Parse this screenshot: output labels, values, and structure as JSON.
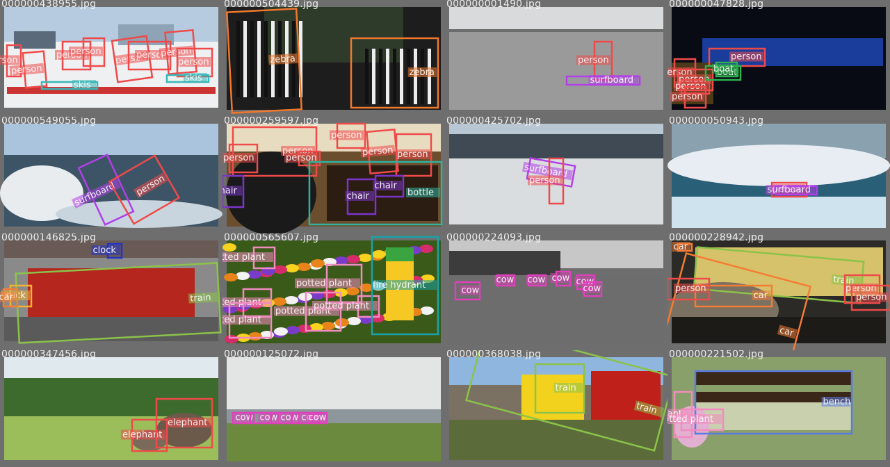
{
  "mosaic": {
    "tiles": [
      {
        "filename": "000000438955.jpg",
        "scene": "ski",
        "objects": [
          {
            "label": "person"
          },
          {
            "label": "person"
          },
          {
            "label": "person"
          },
          {
            "label": "person"
          },
          {
            "label": "person"
          },
          {
            "label": "person"
          },
          {
            "label": "person"
          },
          {
            "label": "person"
          },
          {
            "label": "skis"
          },
          {
            "label": "skis"
          }
        ]
      },
      {
        "filename": "000000504439.jpg",
        "scene": "zebra",
        "objects": [
          {
            "label": "zebra"
          },
          {
            "label": "zebra"
          }
        ]
      },
      {
        "filename": "000000001490.jpg",
        "scene": "sea",
        "objects": [
          {
            "label": "person"
          },
          {
            "label": "surfboard"
          }
        ]
      },
      {
        "filename": "000000047828.jpg",
        "scene": "night",
        "objects": [
          {
            "label": "person"
          },
          {
            "label": "person"
          },
          {
            "label": "person"
          },
          {
            "label": "person"
          },
          {
            "label": "person"
          },
          {
            "label": "boat"
          },
          {
            "label": "boat"
          }
        ]
      },
      {
        "filename": "000000549055.jpg",
        "scene": "wave",
        "objects": [
          {
            "label": "surfboard"
          },
          {
            "label": "person"
          }
        ]
      },
      {
        "filename": "000000259597.jpg",
        "scene": "room",
        "objects": [
          {
            "label": "person"
          },
          {
            "label": "person"
          },
          {
            "label": "person"
          },
          {
            "label": "person"
          },
          {
            "label": "person"
          },
          {
            "label": "person"
          },
          {
            "label": "chair"
          },
          {
            "label": "chair"
          },
          {
            "label": "chair"
          },
          {
            "label": "bottle"
          }
        ]
      },
      {
        "filename": "000000425702.jpg",
        "scene": "beach",
        "objects": [
          {
            "label": "surfboard"
          },
          {
            "label": "person"
          }
        ]
      },
      {
        "filename": "000000050943.jpg",
        "scene": "bigwave",
        "objects": [
          {
            "label": "person"
          },
          {
            "label": "surfboard"
          }
        ]
      },
      {
        "filename": "000000146825.jpg",
        "scene": "train",
        "objects": [
          {
            "label": "clock"
          },
          {
            "label": "train"
          },
          {
            "label": "truck"
          },
          {
            "label": "car"
          }
        ]
      },
      {
        "filename": "000000565607.jpg",
        "scene": "flowers",
        "objects": [
          {
            "label": "potted plant"
          },
          {
            "label": "potted plant"
          },
          {
            "label": "potted plant"
          },
          {
            "label": "potted plant"
          },
          {
            "label": "potted plant"
          },
          {
            "label": "potted plant"
          },
          {
            "label": "fire hydrant"
          }
        ]
      },
      {
        "filename": "000000224093.jpg",
        "scene": "field",
        "objects": [
          {
            "label": "cow"
          },
          {
            "label": "cow"
          },
          {
            "label": "cow"
          },
          {
            "label": "cow"
          },
          {
            "label": "cow"
          },
          {
            "label": "cow"
          }
        ]
      },
      {
        "filename": "000000228942.jpg",
        "scene": "street",
        "objects": [
          {
            "label": "train"
          },
          {
            "label": "car"
          },
          {
            "label": "car"
          },
          {
            "label": "person"
          },
          {
            "label": "person"
          },
          {
            "label": "person"
          },
          {
            "label": "car"
          }
        ]
      },
      {
        "filename": "000000347456.jpg",
        "scene": "savanna",
        "objects": [
          {
            "label": "elephant"
          },
          {
            "label": "elephant"
          }
        ]
      },
      {
        "filename": "000000125072.jpg",
        "scene": "coast",
        "objects": [
          {
            "label": "cow"
          },
          {
            "label": "cow"
          },
          {
            "label": "cow"
          },
          {
            "label": "cow"
          },
          {
            "label": "cow"
          }
        ]
      },
      {
        "filename": "000000368038.jpg",
        "scene": "caboose",
        "objects": [
          {
            "label": "train"
          },
          {
            "label": "train"
          }
        ]
      },
      {
        "filename": "000000221502.jpg",
        "scene": "bench",
        "objects": [
          {
            "label": "bench"
          },
          {
            "label": "potted plant"
          },
          {
            "label": "potted plant"
          }
        ]
      }
    ]
  },
  "label_colors": {
    "person": "#ef4a4a",
    "skis": "#37b7b7",
    "zebra": "#f0782d",
    "surfboard": "#b23fe8",
    "boat": "#2fb14f",
    "chair": "#7a35c9",
    "bottle": "#2fb39f",
    "clock": "#2233c8",
    "train": "#8bc34a",
    "truck": "#f2b233",
    "car": "#f57c34",
    "potted plant": "#f08cc0",
    "fire hydrant": "#19a3a8",
    "cow": "#e23fbd",
    "elephant": "#ef4a4a",
    "bench": "#5b7be3"
  }
}
